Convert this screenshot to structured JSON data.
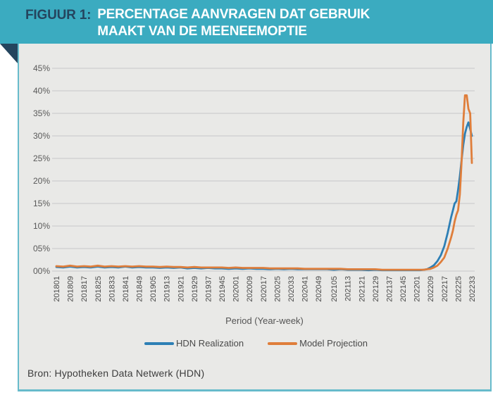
{
  "header": {
    "figure_label": "FIGUUR 1:",
    "title_line1": "PERCENTAGE AANVRAGEN DAT GEBRUIK",
    "title_line2": "MAAKT VAN DE MEENEEMOPTIE"
  },
  "source": "Bron: Hypotheken Data Netwerk (HDN)",
  "colors": {
    "header_bg": "#3BABC0",
    "header_label": "#24455E",
    "header_title": "#FFFFFF",
    "panel_bg": "#E9E9E7",
    "panel_border": "#67BBCB",
    "corner_fold": "#24455E",
    "gridline": "#C8C8C8",
    "tick_text": "#595959",
    "hdn": "#2D7FB5",
    "model": "#DF7E3B"
  },
  "chart_data": {
    "type": "line",
    "title": "Percentage aanvragen dat gebruik maakt van de meeneemoptie",
    "xlabel": "Period (Year-week)",
    "ylabel": "",
    "ylim": [
      0,
      45
    ],
    "grid": "horizontal",
    "legend_position": "bottom",
    "y_ticks": [
      "00%",
      "05%",
      "10%",
      "15%",
      "20%",
      "25%",
      "30%",
      "35%",
      "40%",
      "45%"
    ],
    "y_tick_values": [
      0,
      5,
      10,
      15,
      20,
      25,
      30,
      35,
      40,
      45
    ],
    "x_tick_labels": [
      "201801",
      "201809",
      "201817",
      "201825",
      "201833",
      "201841",
      "201849",
      "201905",
      "201913",
      "201921",
      "201929",
      "201937",
      "201945",
      "202001",
      "202009",
      "202017",
      "202025",
      "202033",
      "202041",
      "202049",
      "202105",
      "202113",
      "202121",
      "202129",
      "202137",
      "202145",
      "202201",
      "202209",
      "202217",
      "202225",
      "202233"
    ],
    "x": [
      "201801",
      "201805",
      "201809",
      "201813",
      "201817",
      "201821",
      "201825",
      "201829",
      "201833",
      "201837",
      "201841",
      "201845",
      "201849",
      "201901",
      "201905",
      "201909",
      "201913",
      "201917",
      "201921",
      "201925",
      "201929",
      "201933",
      "201937",
      "201941",
      "201945",
      "201949",
      "202001",
      "202005",
      "202009",
      "202013",
      "202017",
      "202021",
      "202025",
      "202029",
      "202033",
      "202037",
      "202041",
      "202045",
      "202049",
      "202101",
      "202105",
      "202109",
      "202113",
      "202117",
      "202121",
      "202125",
      "202129",
      "202133",
      "202137",
      "202141",
      "202145",
      "202149",
      "202201",
      "202203",
      "202205",
      "202207",
      "202209",
      "202211",
      "202213",
      "202215",
      "202217",
      "202219",
      "202221",
      "202222",
      "202223",
      "202224",
      "202225",
      "202226",
      "202227",
      "202228",
      "202229",
      "202230",
      "202231",
      "202232",
      "202233"
    ],
    "series": [
      {
        "name": "HDN Realization",
        "color_key": "hdn",
        "values": [
          0.9,
          0.8,
          1.0,
          0.8,
          0.9,
          0.8,
          1.0,
          0.8,
          0.9,
          0.8,
          1.0,
          0.8,
          0.9,
          0.8,
          0.8,
          0.7,
          0.8,
          0.7,
          0.8,
          0.6,
          0.7,
          0.6,
          0.7,
          0.6,
          0.6,
          0.5,
          0.6,
          0.5,
          0.6,
          0.5,
          0.5,
          0.4,
          0.5,
          0.4,
          0.5,
          0.4,
          0.4,
          0.4,
          0.4,
          0.4,
          0.3,
          0.4,
          0.3,
          0.3,
          0.3,
          0.2,
          0.3,
          0.2,
          0.2,
          0.2,
          0.2,
          0.2,
          0.2,
          0.2,
          0.3,
          0.4,
          0.8,
          1.3,
          2.2,
          3.5,
          5.5,
          8.5,
          12,
          13.5,
          15,
          15.5,
          18,
          21,
          24.5,
          28,
          30.5,
          32,
          33,
          31.5,
          30
        ]
      },
      {
        "name": "Model Projection",
        "color_key": "model",
        "values": [
          1.1,
          1.0,
          1.2,
          1.0,
          1.1,
          1.0,
          1.2,
          1.0,
          1.1,
          1.0,
          1.1,
          1.0,
          1.1,
          1.0,
          1.0,
          0.9,
          1.0,
          0.9,
          0.9,
          0.8,
          0.9,
          0.8,
          0.8,
          0.8,
          0.8,
          0.7,
          0.8,
          0.7,
          0.7,
          0.7,
          0.7,
          0.6,
          0.6,
          0.6,
          0.6,
          0.6,
          0.5,
          0.5,
          0.5,
          0.5,
          0.5,
          0.5,
          0.4,
          0.4,
          0.4,
          0.4,
          0.4,
          0.3,
          0.3,
          0.3,
          0.3,
          0.3,
          0.3,
          0.3,
          0.3,
          0.4,
          0.5,
          0.8,
          1.2,
          2.0,
          3.0,
          5.0,
          7.5,
          9.0,
          11,
          12.5,
          13.5,
          17,
          24,
          33,
          39,
          39,
          36,
          35,
          24
        ]
      }
    ]
  }
}
